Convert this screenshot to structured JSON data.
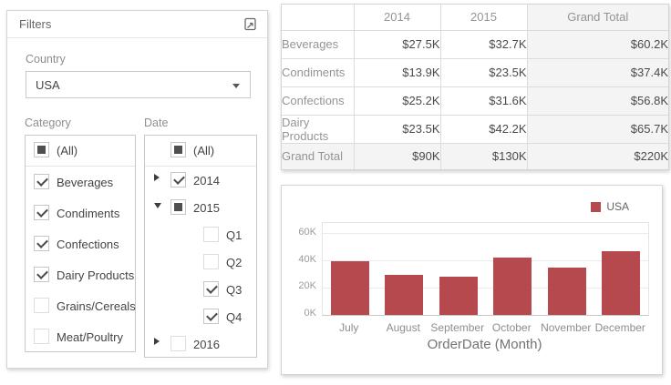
{
  "filters_panel": {
    "title": "Filters",
    "country": {
      "label": "Country",
      "value": "USA"
    },
    "category": {
      "label": "Category",
      "all_item": {
        "label": "(All)",
        "state": "indeterminate"
      },
      "items": [
        {
          "label": "Beverages",
          "state": "checked"
        },
        {
          "label": "Condiments",
          "state": "checked"
        },
        {
          "label": "Confections",
          "state": "checked"
        },
        {
          "label": "Dairy Products",
          "state": "checked"
        },
        {
          "label": "Grains/Cereals",
          "state": "unchecked"
        },
        {
          "label": "Meat/Poultry",
          "state": "unchecked"
        }
      ]
    },
    "date": {
      "label": "Date",
      "all_item": {
        "label": "(All)",
        "state": "indeterminate"
      },
      "items": [
        {
          "label": "2014",
          "state": "checked",
          "expander": "collapsed",
          "level": 0
        },
        {
          "label": "2015",
          "state": "indeterminate",
          "expander": "expanded",
          "level": 0
        },
        {
          "label": "Q1",
          "state": "unchecked",
          "expander": "none",
          "level": 1
        },
        {
          "label": "Q2",
          "state": "unchecked",
          "expander": "none",
          "level": 1
        },
        {
          "label": "Q3",
          "state": "checked",
          "expander": "none",
          "level": 1
        },
        {
          "label": "Q4",
          "state": "checked",
          "expander": "none",
          "level": 1
        },
        {
          "label": "2016",
          "state": "unchecked",
          "expander": "collapsed",
          "level": 0
        }
      ]
    }
  },
  "pivot": {
    "column_headers": [
      "",
      "2014",
      "2015",
      "Grand Total"
    ],
    "rows": [
      {
        "header": "Beverages",
        "values": [
          "$27.5K",
          "$32.7K",
          "$60.2K"
        ],
        "is_total": false
      },
      {
        "header": "Condiments",
        "values": [
          "$13.9K",
          "$23.5K",
          "$37.4K"
        ],
        "is_total": false
      },
      {
        "header": "Confections",
        "values": [
          "$25.2K",
          "$31.6K",
          "$56.8K"
        ],
        "is_total": false
      },
      {
        "header": "Dairy Products",
        "values": [
          "$23.5K",
          "$42.2K",
          "$65.7K"
        ],
        "is_total": false
      },
      {
        "header": "Grand Total",
        "values": [
          "$90K",
          "$130K",
          "$220K"
        ],
        "is_total": true
      }
    ]
  },
  "chart_data": {
    "type": "bar",
    "categories": [
      "July",
      "August",
      "September",
      "October",
      "November",
      "December"
    ],
    "series": [
      {
        "name": "USA",
        "color": "#b5494e",
        "values": [
          40000,
          29500,
          28000,
          42500,
          35000,
          47000
        ]
      }
    ],
    "title": "",
    "xlabel": "OrderDate (Month)",
    "ylabel": "",
    "ylim": [
      0,
      68000
    ],
    "yticks": [
      {
        "label": "0K",
        "value": 0
      },
      {
        "label": "20K",
        "value": 20000
      },
      {
        "label": "40K",
        "value": 40000
      },
      {
        "label": "60K",
        "value": 60000
      }
    ],
    "grid": true,
    "legend_position": "top-right"
  }
}
